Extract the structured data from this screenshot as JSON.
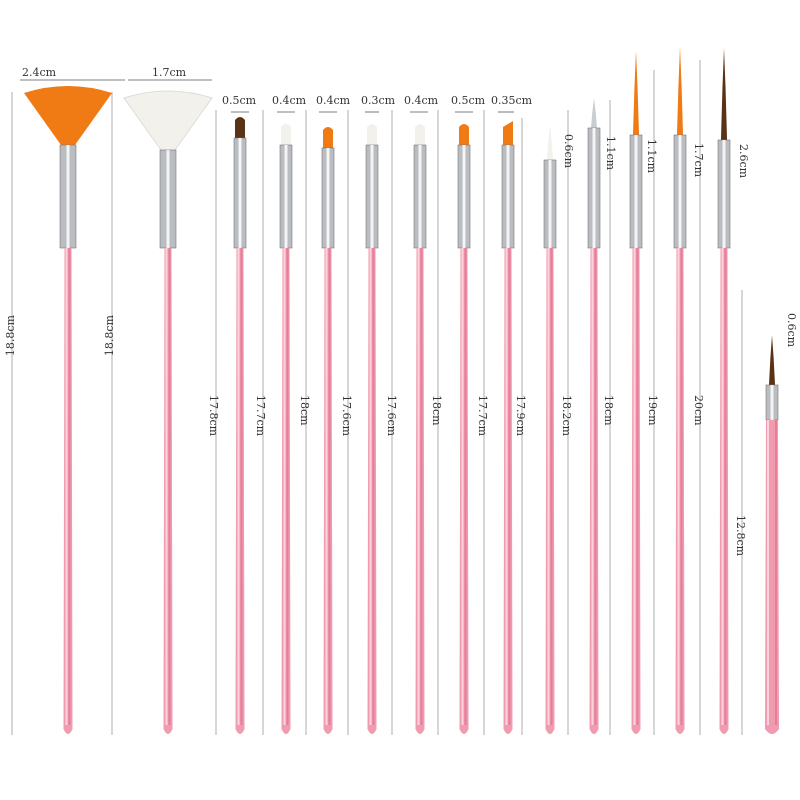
{
  "colors": {
    "handle": "#f19bb0",
    "handle_shade": "#e57f98",
    "ferrule": "#b9bcc0",
    "orange": "#f07a14",
    "white": "#f3f1ec",
    "brown": "#5a3216"
  },
  "brushes": [
    {
      "type": "fan",
      "bristle": "orange",
      "width_label": "2.4cm",
      "length_label": "18.8cm"
    },
    {
      "type": "fan",
      "bristle": "white",
      "width_label": "1.7cm",
      "length_label": "18.8cm"
    },
    {
      "type": "flat",
      "bristle": "brown",
      "width_label": "0.5cm",
      "length_label": "17.8cm"
    },
    {
      "type": "flat",
      "bristle": "white",
      "width_label": "0.4cm",
      "length_label": "17.7cm"
    },
    {
      "type": "flat",
      "bristle": "orange",
      "width_label": "0.4cm",
      "length_label": "18cm"
    },
    {
      "type": "flat",
      "bristle": "white",
      "width_label": "0.3cm",
      "length_label": "17.6cm"
    },
    {
      "type": "flat",
      "bristle": "white",
      "width_label": "0.4cm",
      "length_label": "17.6cm"
    },
    {
      "type": "flat",
      "bristle": "orange",
      "width_label": "0.5cm",
      "length_label": "18cm"
    },
    {
      "type": "angled",
      "bristle": "orange",
      "width_label": "0.35cm",
      "length_label": "17.7cm"
    },
    {
      "type": "liner",
      "bristle": "white",
      "tip_label": "0.6cm",
      "length_label": "17.9cm"
    },
    {
      "type": "dot",
      "bristle": "silver",
      "tip_label": "1.1cm",
      "length_label": "18.2cm"
    },
    {
      "type": "liner",
      "bristle": "orange",
      "tip_label": "1.1cm",
      "length_label": "18cm"
    },
    {
      "type": "liner",
      "bristle": "orange",
      "tip_label": "1.7cm",
      "length_label": "19cm"
    },
    {
      "type": "liner",
      "bristle": "brown",
      "tip_label": "2.6cm",
      "length_label": "20cm"
    },
    {
      "type": "short-liner",
      "bristle": "brown",
      "tip_label": "0.6cm",
      "length_label": "12.8cm"
    }
  ]
}
